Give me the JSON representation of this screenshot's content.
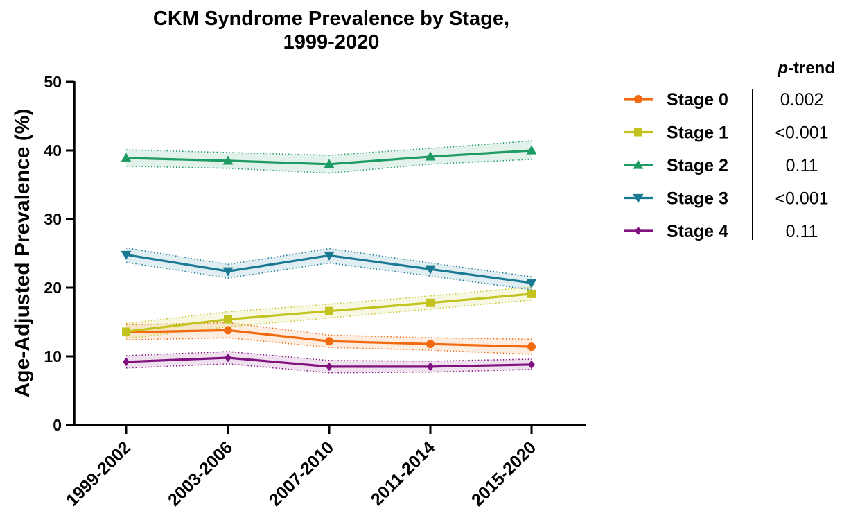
{
  "chart_data": {
    "type": "line",
    "title_lines": [
      "CKM Syndrome Prevalence by Stage,",
      "1999-2020"
    ],
    "ylabel": "Age-Adjusted Prevalence (%)",
    "xlabel": "",
    "categories": [
      "1999-2002",
      "2003-2006",
      "2007-2010",
      "2011-2014",
      "2015-2020"
    ],
    "ylim": [
      0,
      50
    ],
    "yticks": [
      0,
      10,
      20,
      30,
      40,
      50
    ],
    "grid": false,
    "legend_position": "right",
    "series": [
      {
        "name": "Stage 0",
        "color": "#f26a10",
        "marker": "circle",
        "values": [
          13.5,
          13.8,
          12.2,
          11.8,
          11.4
        ],
        "lower": [
          12.4,
          12.7,
          11.3,
          10.9,
          10.3
        ],
        "upper": [
          14.6,
          14.9,
          13.1,
          12.7,
          12.5
        ],
        "p_trend": "0.002"
      },
      {
        "name": "Stage 1",
        "color": "#c3c320",
        "marker": "square",
        "values": [
          13.6,
          15.4,
          16.6,
          17.8,
          19.1
        ],
        "lower": [
          12.6,
          14.3,
          15.6,
          16.9,
          18.2
        ],
        "upper": [
          14.8,
          16.5,
          17.6,
          18.8,
          20.1
        ],
        "p_trend": "<0.001"
      },
      {
        "name": "Stage 2",
        "color": "#1f9b64",
        "marker": "triangle-up",
        "values": [
          38.9,
          38.5,
          38.0,
          39.1,
          40.0
        ],
        "lower": [
          37.7,
          37.4,
          36.7,
          38.0,
          38.7
        ],
        "upper": [
          40.1,
          39.7,
          39.3,
          40.3,
          41.4
        ],
        "p_trend": "0.11"
      },
      {
        "name": "Stage 3",
        "color": "#1a7a93",
        "marker": "triangle-down",
        "values": [
          24.8,
          22.4,
          24.7,
          22.7,
          20.7
        ],
        "lower": [
          23.7,
          21.4,
          23.6,
          21.7,
          19.7
        ],
        "upper": [
          25.8,
          23.4,
          25.7,
          23.6,
          21.6
        ],
        "p_trend": "<0.001"
      },
      {
        "name": "Stage 4",
        "color": "#80127f",
        "marker": "diamond",
        "values": [
          9.2,
          9.8,
          8.5,
          8.5,
          8.8
        ],
        "lower": [
          8.3,
          8.9,
          7.6,
          7.7,
          8.1
        ],
        "upper": [
          10.1,
          10.7,
          9.4,
          9.3,
          9.6
        ],
        "p_trend": "0.11"
      }
    ],
    "ptrend_header": {
      "italic": "p",
      "rest": "-trend"
    }
  }
}
